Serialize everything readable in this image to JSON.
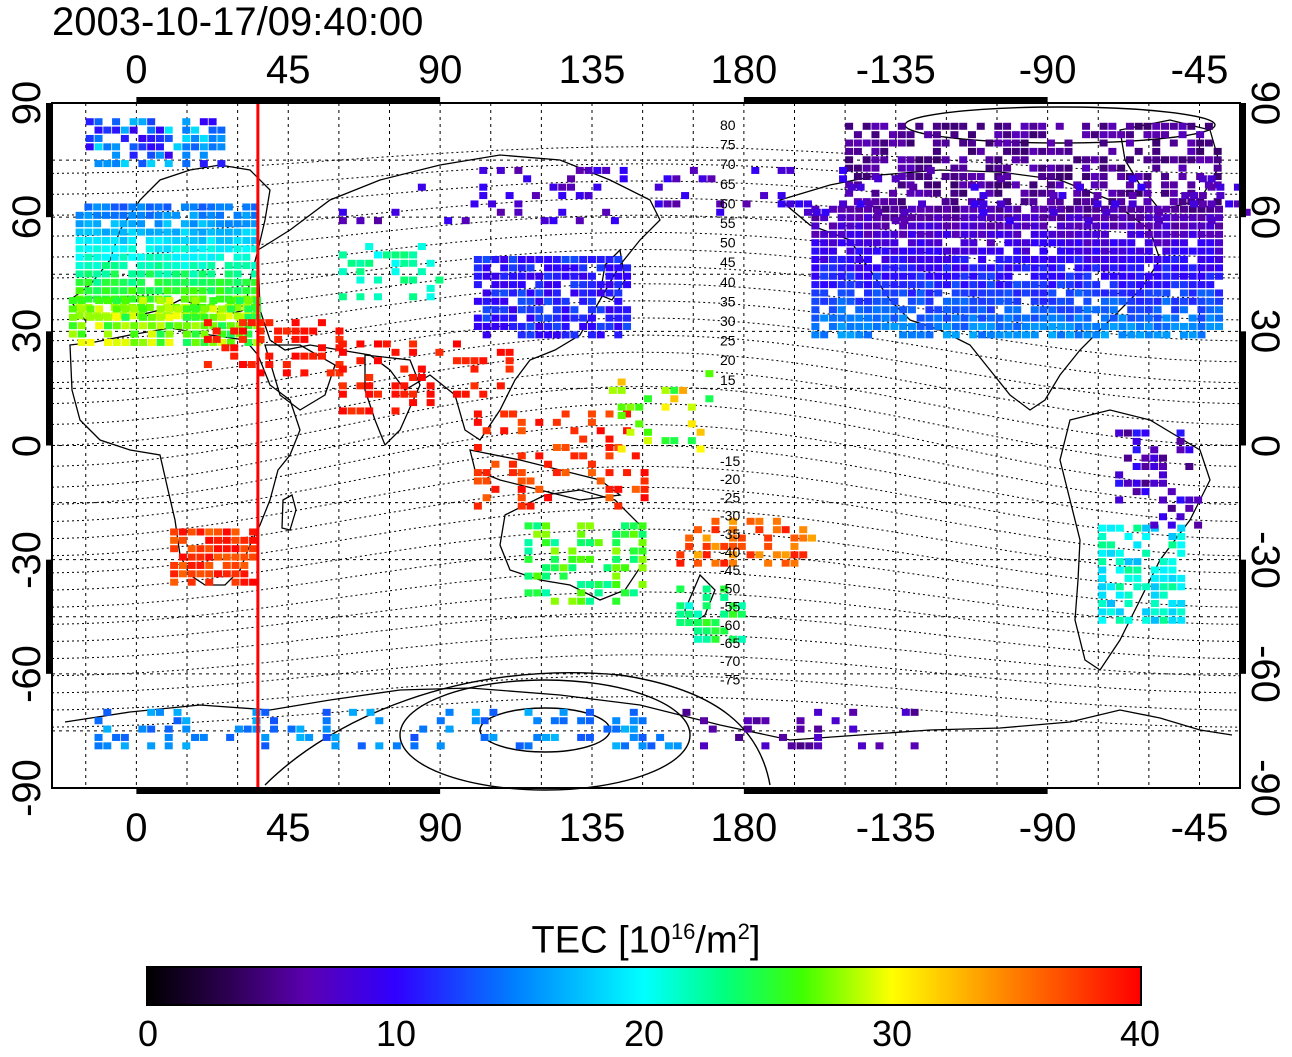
{
  "timestamp": "2003-10-17/09:40:00",
  "x_ticks": [
    "0",
    "45",
    "90",
    "135",
    "180",
    "-135",
    "-90",
    "-45"
  ],
  "y_ticks": [
    "90",
    "60",
    "30",
    "0",
    "-30",
    "-60",
    "-90"
  ],
  "colorbar": {
    "label_main": "TEC  [10",
    "label_sup1": "16",
    "label_mid": "/m",
    "label_sup2": "2",
    "label_end": "]",
    "ticks": [
      "0",
      "10",
      "20",
      "30",
      "40"
    ],
    "range": [
      0,
      40
    ]
  },
  "contour_labels_north": [
    "80",
    "75",
    "70",
    "65",
    "60",
    "55",
    "50",
    "45",
    "40",
    "35",
    "30",
    "25",
    "20",
    "15"
  ],
  "contour_labels_south": [
    "-15",
    "-20",
    "-25",
    "-30",
    "-35",
    "-40",
    "-45",
    "-50",
    "-55",
    "-60",
    "-65",
    "-70",
    "-75"
  ],
  "marker_longitude": 36,
  "map": {
    "lon_range": [
      -25,
      327
    ],
    "lat_range": [
      -90,
      90
    ],
    "grid_step": 15,
    "marker_color": "#ff0000"
  }
}
